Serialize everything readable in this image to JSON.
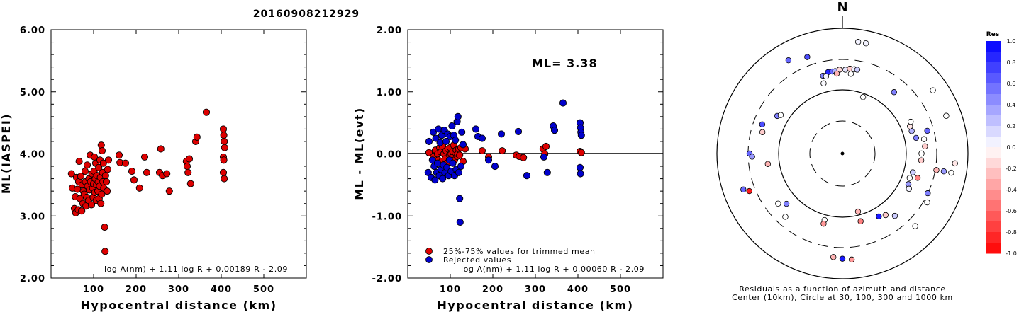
{
  "title": "20160908212929",
  "chart_data": [
    {
      "type": "scatter",
      "ylabel": "ML(IASPEI)",
      "xlabel": "Hypocentral distance (km)",
      "xlim": [
        0,
        600
      ],
      "ylim": [
        2.0,
        6.0
      ],
      "xticks": [
        "100",
        "200",
        "300",
        "400",
        "500"
      ],
      "yticks": [
        "2.00",
        "3.00",
        "4.00",
        "5.00",
        "6.00"
      ],
      "formula": "log A(nm) + 1.11 log R + 0.00189 R - 2.09",
      "color": "#dd0000",
      "points": [
        [
          48,
          3.68
        ],
        [
          50,
          3.45
        ],
        [
          55,
          3.12
        ],
        [
          57,
          3.31
        ],
        [
          58,
          3.05
        ],
        [
          60,
          3.62
        ],
        [
          62,
          3.43
        ],
        [
          64,
          3.1
        ],
        [
          65,
          3.55
        ],
        [
          66,
          3.88
        ],
        [
          68,
          3.28
        ],
        [
          70,
          3.64
        ],
        [
          72,
          3.08
        ],
        [
          73,
          3.5
        ],
        [
          75,
          3.2
        ],
        [
          76,
          3.4
        ],
        [
          78,
          3.35
        ],
        [
          80,
          3.72
        ],
        [
          81,
          3.55
        ],
        [
          82,
          3.16
        ],
        [
          84,
          3.3
        ],
        [
          85,
          3.82
        ],
        [
          86,
          3.48
        ],
        [
          88,
          3.25
        ],
        [
          89,
          3.6
        ],
        [
          90,
          3.42
        ],
        [
          92,
          3.98
        ],
        [
          93,
          3.55
        ],
        [
          95,
          3.18
        ],
        [
          96,
          3.68
        ],
        [
          98,
          3.45
        ],
        [
          99,
          3.3
        ],
        [
          100,
          3.52
        ],
        [
          101,
          3.72
        ],
        [
          102,
          3.95
        ],
        [
          103,
          3.38
        ],
        [
          104,
          3.6
        ],
        [
          105,
          3.85
        ],
        [
          106,
          3.25
        ],
        [
          107,
          3.5
        ],
        [
          108,
          3.65
        ],
        [
          110,
          3.4
        ],
        [
          111,
          3.55
        ],
        [
          112,
          3.78
        ],
        [
          113,
          3.28
        ],
        [
          114,
          3.48
        ],
        [
          115,
          3.9
        ],
        [
          116,
          3.62
        ],
        [
          117,
          3.2
        ],
        [
          118,
          4.14
        ],
        [
          119,
          3.35
        ],
        [
          120,
          4.05
        ],
        [
          121,
          3.7
        ],
        [
          122,
          3.55
        ],
        [
          123,
          3.85
        ],
        [
          124,
          3.45
        ],
        [
          126,
          2.82
        ],
        [
          127,
          2.43
        ],
        [
          128,
          3.65
        ],
        [
          130,
          3.55
        ],
        [
          132,
          3.4
        ],
        [
          133,
          3.75
        ],
        [
          135,
          3.9
        ],
        [
          160,
          3.98
        ],
        [
          162,
          3.86
        ],
        [
          175,
          3.85
        ],
        [
          190,
          3.72
        ],
        [
          195,
          3.58
        ],
        [
          208,
          3.45
        ],
        [
          220,
          3.95
        ],
        [
          225,
          3.7
        ],
        [
          255,
          3.7
        ],
        [
          258,
          4.08
        ],
        [
          262,
          3.65
        ],
        [
          272,
          3.68
        ],
        [
          278,
          3.4
        ],
        [
          318,
          3.88
        ],
        [
          320,
          3.8
        ],
        [
          322,
          3.7
        ],
        [
          325,
          3.92
        ],
        [
          328,
          3.52
        ],
        [
          340,
          4.2
        ],
        [
          343,
          4.27
        ],
        [
          365,
          4.67
        ],
        [
          405,
          4.4
        ],
        [
          406,
          4.3
        ],
        [
          407,
          4.2
        ],
        [
          408,
          4.1
        ],
        [
          405,
          3.95
        ],
        [
          406,
          3.9
        ],
        [
          405,
          3.7
        ],
        [
          407,
          3.6
        ]
      ]
    },
    {
      "type": "scatter",
      "ylabel": "ML - ML(evt)",
      "xlabel": "Hypocentral distance (km)",
      "xlim": [
        0,
        600
      ],
      "ylim": [
        -2.0,
        2.0
      ],
      "xticks": [
        "100",
        "200",
        "300",
        "400",
        "500"
      ],
      "yticks": [
        "-2.00",
        "-1.00",
        "0.00",
        "1.00",
        "2.00"
      ],
      "annotation": "ML= 3.38",
      "formula": "log A(nm) + 1.11 log R + 0.00060 R - 2.09",
      "legend": [
        {
          "label": "25%-75% values for trimmed mean",
          "color": "#dd0000"
        },
        {
          "label": "Rejected values",
          "color": "#0000cc"
        }
      ],
      "series": [
        {
          "name": "25%-75% values for trimmed mean",
          "color": "#dd0000",
          "points": [
            [
              50,
              0.02
            ],
            [
              60,
              -0.05
            ],
            [
              65,
              0.06
            ],
            [
              70,
              0.0
            ],
            [
              72,
              -0.1
            ],
            [
              75,
              0.1
            ],
            [
              78,
              0.03
            ],
            [
              80,
              -0.12
            ],
            [
              82,
              0.12
            ],
            [
              85,
              0.0
            ],
            [
              88,
              -0.08
            ],
            [
              90,
              0.05
            ],
            [
              92,
              -0.15
            ],
            [
              95,
              0.08
            ],
            [
              98,
              -0.02
            ],
            [
              100,
              0.1
            ],
            [
              102,
              0.0
            ],
            [
              104,
              -0.06
            ],
            [
              106,
              0.04
            ],
            [
              108,
              0.14
            ],
            [
              110,
              -0.1
            ],
            [
              112,
              0.02
            ],
            [
              114,
              0.06
            ],
            [
              116,
              -0.04
            ],
            [
              118,
              0.0
            ],
            [
              120,
              0.08
            ],
            [
              122,
              -0.02
            ],
            [
              125,
              0.1
            ],
            [
              130,
              -0.12
            ],
            [
              135,
              0.08
            ],
            [
              175,
              0.05
            ],
            [
              190,
              -0.05
            ],
            [
              222,
              0.05
            ],
            [
              255,
              -0.02
            ],
            [
              262,
              -0.04
            ],
            [
              272,
              -0.06
            ],
            [
              318,
              0.08
            ],
            [
              322,
              0.0
            ],
            [
              325,
              0.12
            ],
            [
              405,
              0.04
            ],
            [
              408,
              0.02
            ]
          ]
        },
        {
          "name": "Rejected values",
          "color": "#0000cc",
          "points": [
            [
              48,
              -0.3
            ],
            [
              50,
              0.2
            ],
            [
              55,
              -0.38
            ],
            [
              58,
              -0.1
            ],
            [
              60,
              0.35
            ],
            [
              62,
              -0.2
            ],
            [
              64,
              -0.42
            ],
            [
              66,
              0.25
            ],
            [
              68,
              -0.3
            ],
            [
              70,
              -0.15
            ],
            [
              72,
              0.4
            ],
            [
              74,
              -0.35
            ],
            [
              76,
              0.18
            ],
            [
              78,
              -0.25
            ],
            [
              80,
              0.3
            ],
            [
              82,
              -0.4
            ],
            [
              84,
              -0.18
            ],
            [
              86,
              0.38
            ],
            [
              88,
              -0.3
            ],
            [
              90,
              0.2
            ],
            [
              92,
              -0.22
            ],
            [
              94,
              0.32
            ],
            [
              96,
              -0.35
            ],
            [
              98,
              -0.1
            ],
            [
              100,
              0.28
            ],
            [
              102,
              -0.28
            ],
            [
              104,
              0.45
            ],
            [
              106,
              -0.15
            ],
            [
              108,
              0.3
            ],
            [
              110,
              -0.35
            ],
            [
              112,
              0.22
            ],
            [
              114,
              -0.25
            ],
            [
              116,
              0.52
            ],
            [
              118,
              0.6
            ],
            [
              120,
              -0.3
            ],
            [
              122,
              -0.72
            ],
            [
              123,
              -1.1
            ],
            [
              125,
              -0.2
            ],
            [
              127,
              0.35
            ],
            [
              130,
              0.15
            ],
            [
              160,
              0.4
            ],
            [
              165,
              0.28
            ],
            [
              175,
              0.25
            ],
            [
              190,
              -0.1
            ],
            [
              205,
              -0.2
            ],
            [
              220,
              0.32
            ],
            [
              260,
              0.36
            ],
            [
              280,
              -0.35
            ],
            [
              320,
              -0.05
            ],
            [
              328,
              -0.3
            ],
            [
              342,
              0.45
            ],
            [
              345,
              0.38
            ],
            [
              365,
              0.82
            ],
            [
              405,
              0.5
            ],
            [
              406,
              0.42
            ],
            [
              407,
              0.35
            ],
            [
              408,
              0.3
            ],
            [
              405,
              -0.22
            ],
            [
              406,
              -0.32
            ]
          ]
        }
      ]
    },
    {
      "type": "scatter",
      "subtype": "polar",
      "north_label": "N",
      "caption_line1": "Residuals as a function of azimuth and distance",
      "caption_line2": "Center (10km), Circle at 30, 100, 300 and 1000 km",
      "colorbar_title": "Res",
      "colorbar_ticks": [
        "1.0",
        "0.8",
        "0.6",
        "0.4",
        "0.2",
        "0.0",
        "-0.2",
        "-0.4",
        "-0.6",
        "-0.8",
        "-1.0"
      ],
      "colorbar_range": [
        -1.0,
        1.0
      ],
      "stations": [
        [
          8,
          0.9,
          0.05
        ],
        [
          12,
          0.9,
          0.05
        ],
        [
          330,
          0.86,
          0.6
        ],
        [
          340,
          0.82,
          0.7
        ],
        [
          350,
          0.66,
          0.85
        ],
        [
          353,
          0.66,
          0.6
        ],
        [
          355,
          0.66,
          0.3
        ],
        [
          358,
          0.67,
          -0.15
        ],
        [
          2,
          0.67,
          0.1
        ],
        [
          5,
          0.68,
          -0.2
        ],
        [
          8,
          0.68,
          0.05
        ],
        [
          10,
          0.68,
          0.2
        ],
        [
          346,
          0.64,
          0.5
        ],
        [
          348,
          0.63,
          0.05
        ],
        [
          356,
          0.64,
          -0.3
        ],
        [
          6,
          0.64,
          0.0
        ],
        [
          345,
          0.58,
          0.02
        ],
        [
          20,
          0.48,
          0.0
        ],
        [
          40,
          0.64,
          0.5
        ],
        [
          55,
          0.88,
          0.0
        ],
        [
          300,
          0.6,
          0.5
        ],
        [
          302,
          0.58,
          0.0
        ],
        [
          290,
          0.68,
          0.7
        ],
        [
          285,
          0.66,
          -0.2
        ],
        [
          270,
          0.74,
          0.6
        ],
        [
          268,
          0.72,
          0.4
        ],
        [
          262,
          0.6,
          -0.3
        ],
        [
          250,
          0.84,
          0.6
        ],
        [
          248,
          0.8,
          -0.9
        ],
        [
          228,
          0.6,
          0.5
        ],
        [
          232,
          0.65,
          0.0
        ],
        [
          222,
          0.68,
          0.0
        ],
        [
          195,
          0.55,
          0.0
        ],
        [
          195,
          0.58,
          -0.4
        ],
        [
          185,
          0.83,
          -0.3
        ],
        [
          180,
          0.84,
          0.9
        ],
        [
          175,
          0.85,
          -0.4
        ],
        [
          165,
          0.48,
          -0.3
        ],
        [
          165,
          0.56,
          -0.5
        ],
        [
          150,
          0.58,
          0.9
        ],
        [
          145,
          0.6,
          -0.2
        ],
        [
          140,
          0.65,
          0.2
        ],
        [
          135,
          0.82,
          0.0
        ],
        [
          120,
          0.78,
          0.0
        ],
        [
          115,
          0.75,
          0.5
        ],
        [
          100,
          0.76,
          -0.3
        ],
        [
          100,
          0.82,
          0.4
        ],
        [
          95,
          0.63,
          -0.2
        ],
        [
          90,
          0.63,
          0.0
        ],
        [
          85,
          0.66,
          -0.2
        ],
        [
          80,
          0.66,
          0.0
        ],
        [
          75,
          0.7,
          0.6
        ],
        [
          78,
          0.6,
          0.5
        ],
        [
          72,
          0.58,
          0.3
        ],
        [
          115,
          0.58,
          0.4
        ],
        [
          118,
          0.6,
          0.05
        ],
        [
          108,
          0.63,
          -0.5
        ],
        [
          110,
          0.57,
          0.0
        ],
        [
          105,
          0.58,
          0.2
        ],
        [
          68,
          0.58,
          -0.1
        ],
        [
          65,
          0.6,
          0.0
        ],
        [
          70,
          0.88,
          0.0
        ],
        [
          95,
          0.9,
          -0.1
        ],
        [
          100,
          0.88,
          0.0
        ]
      ]
    }
  ]
}
